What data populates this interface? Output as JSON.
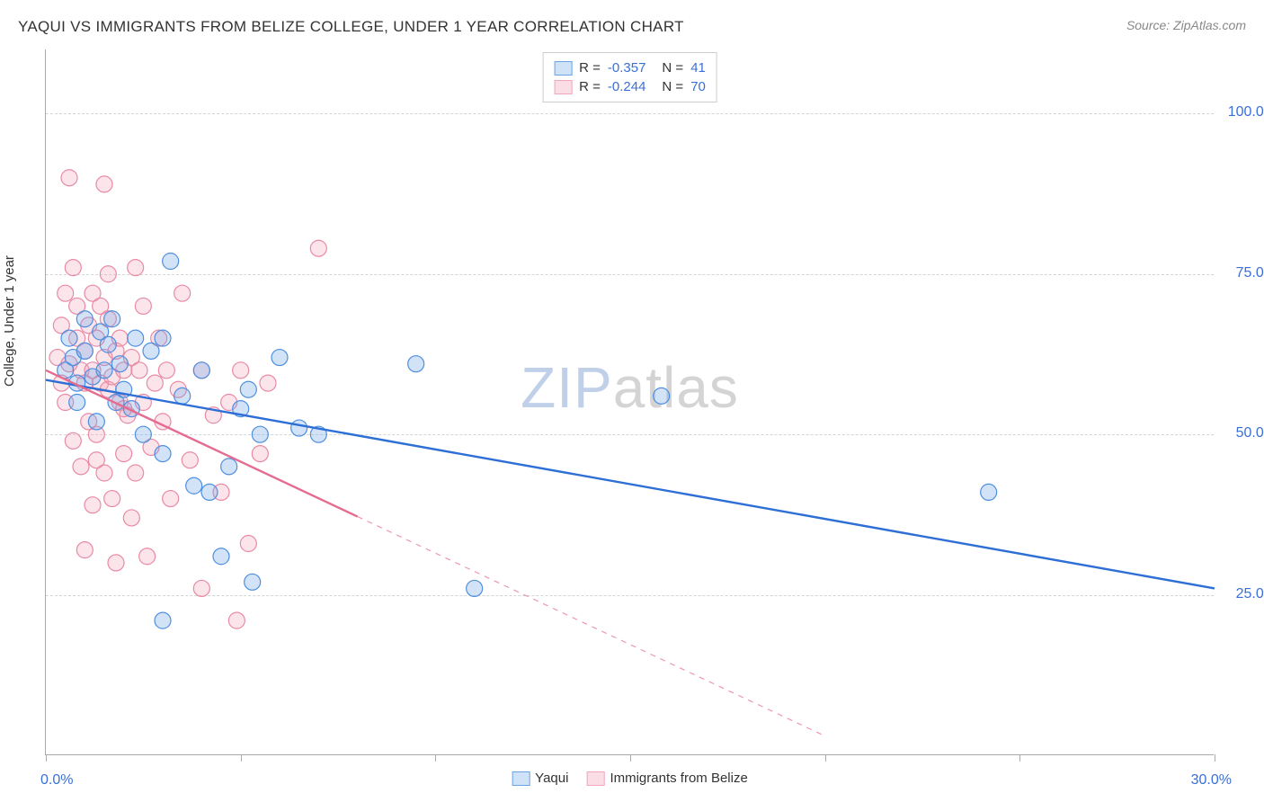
{
  "header": {
    "title": "YAQUI VS IMMIGRANTS FROM BELIZE COLLEGE, UNDER 1 YEAR CORRELATION CHART",
    "source": "Source: ZipAtlas.com"
  },
  "watermark": {
    "part1": "ZIP",
    "part2": "atlas"
  },
  "chart": {
    "type": "scatter",
    "ylabel": "College, Under 1 year",
    "xlim": [
      0,
      30
    ],
    "ylim": [
      0,
      110
    ],
    "x_tick_positions": [
      0,
      5,
      10,
      15,
      20,
      25,
      30
    ],
    "y_gridlines": [
      25,
      50,
      75,
      100
    ],
    "y_tick_labels": [
      "25.0%",
      "50.0%",
      "75.0%",
      "100.0%"
    ],
    "x_min_label": "0.0%",
    "x_max_label": "30.0%",
    "background_color": "#ffffff",
    "grid_color": "#d5d5d5",
    "axis_color": "#aaaaaa",
    "marker_radius": 9,
    "marker_stroke_width": 1.2,
    "marker_fill_opacity": 0.3,
    "line_width": 2.4,
    "series": [
      {
        "name": "Yaqui",
        "color": "#6aa3e8",
        "stroke": "#4f8fe0",
        "line_color": "#2e6fd6",
        "r": "-0.357",
        "n": "41",
        "trend": {
          "x1": 0.0,
          "y1": 58.5,
          "x2": 30.0,
          "y2": 26.0,
          "solid_until_x": 30.0
        },
        "points": [
          [
            0.5,
            60
          ],
          [
            0.6,
            65
          ],
          [
            0.7,
            62
          ],
          [
            0.8,
            58
          ],
          [
            0.8,
            55
          ],
          [
            1.0,
            63
          ],
          [
            1.0,
            68
          ],
          [
            1.2,
            59
          ],
          [
            1.3,
            52
          ],
          [
            1.4,
            66
          ],
          [
            1.5,
            60
          ],
          [
            1.6,
            64
          ],
          [
            1.8,
            55
          ],
          [
            1.9,
            61
          ],
          [
            2.0,
            57
          ],
          [
            2.2,
            54
          ],
          [
            2.3,
            65
          ],
          [
            2.5,
            50
          ],
          [
            2.7,
            63
          ],
          [
            3.0,
            65
          ],
          [
            3.0,
            47
          ],
          [
            3.2,
            77
          ],
          [
            3.5,
            56
          ],
          [
            3.8,
            42
          ],
          [
            4.0,
            60
          ],
          [
            4.2,
            41
          ],
          [
            4.5,
            31
          ],
          [
            4.7,
            45
          ],
          [
            5.0,
            54
          ],
          [
            5.2,
            57
          ],
          [
            5.3,
            27
          ],
          [
            5.5,
            50
          ],
          [
            6.0,
            62
          ],
          [
            6.5,
            51
          ],
          [
            7.0,
            50
          ],
          [
            9.5,
            61
          ],
          [
            11.0,
            26
          ],
          [
            15.8,
            56
          ],
          [
            24.2,
            41
          ],
          [
            3.0,
            21
          ],
          [
            1.7,
            68
          ]
        ]
      },
      {
        "name": "Immigrants from Belize",
        "color": "#f1a6bb",
        "stroke": "#e98aa5",
        "line_color": "#e56b8f",
        "r": "-0.244",
        "n": "70",
        "trend": {
          "x1": 0.0,
          "y1": 60.0,
          "x2": 20.0,
          "y2": 3.0,
          "solid_until_x": 8.0
        },
        "points": [
          [
            0.3,
            62
          ],
          [
            0.4,
            67
          ],
          [
            0.4,
            58
          ],
          [
            0.5,
            72
          ],
          [
            0.5,
            55
          ],
          [
            0.6,
            90
          ],
          [
            0.6,
            61
          ],
          [
            0.7,
            76
          ],
          [
            0.7,
            49
          ],
          [
            0.8,
            65
          ],
          [
            0.8,
            70
          ],
          [
            0.9,
            60
          ],
          [
            0.9,
            45
          ],
          [
            1.0,
            63
          ],
          [
            1.0,
            58
          ],
          [
            1.1,
            67
          ],
          [
            1.1,
            52
          ],
          [
            1.2,
            72
          ],
          [
            1.2,
            60
          ],
          [
            1.2,
            39
          ],
          [
            1.3,
            65
          ],
          [
            1.3,
            50
          ],
          [
            1.4,
            58
          ],
          [
            1.4,
            70
          ],
          [
            1.5,
            62
          ],
          [
            1.5,
            44
          ],
          [
            1.5,
            89
          ],
          [
            1.6,
            57
          ],
          [
            1.6,
            68
          ],
          [
            1.7,
            59
          ],
          [
            1.7,
            40
          ],
          [
            1.8,
            63
          ],
          [
            1.8,
            30
          ],
          [
            1.9,
            55
          ],
          [
            1.9,
            65
          ],
          [
            2.0,
            60
          ],
          [
            2.0,
            47
          ],
          [
            2.1,
            53
          ],
          [
            2.2,
            62
          ],
          [
            2.3,
            44
          ],
          [
            2.3,
            76
          ],
          [
            2.4,
            60
          ],
          [
            2.5,
            55
          ],
          [
            2.5,
            70
          ],
          [
            2.6,
            31
          ],
          [
            2.8,
            58
          ],
          [
            2.9,
            65
          ],
          [
            3.0,
            52
          ],
          [
            3.1,
            60
          ],
          [
            3.2,
            40
          ],
          [
            3.4,
            57
          ],
          [
            3.5,
            72
          ],
          [
            3.7,
            46
          ],
          [
            4.0,
            60
          ],
          [
            4.0,
            26
          ],
          [
            4.3,
            53
          ],
          [
            4.5,
            41
          ],
          [
            4.7,
            55
          ],
          [
            4.9,
            21
          ],
          [
            5.0,
            60
          ],
          [
            5.2,
            33
          ],
          [
            5.5,
            47
          ],
          [
            5.7,
            58
          ],
          [
            7.0,
            79
          ],
          [
            1.0,
            32
          ],
          [
            1.3,
            46
          ],
          [
            1.6,
            75
          ],
          [
            2.0,
            54
          ],
          [
            2.2,
            37
          ],
          [
            2.7,
            48
          ]
        ]
      }
    ]
  },
  "legend_bottom": [
    {
      "label": "Yaqui",
      "fill": "#cfe2f8",
      "stroke": "#6aa3e8"
    },
    {
      "label": "Immigrants from Belize",
      "fill": "#fbdde6",
      "stroke": "#f1a6bb"
    }
  ]
}
